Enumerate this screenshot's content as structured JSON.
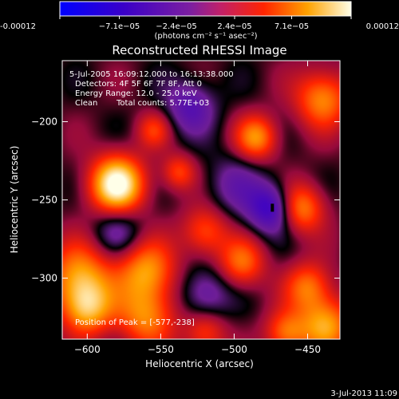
{
  "chart_data": {
    "type": "heatmap",
    "title": "Reconstructed RHESSI Image",
    "xlabel": "Heliocentric X (arcsec)",
    "ylabel": "Heliocentric Y (arcsec)",
    "xlim": [
      -617,
      -428
    ],
    "ylim": [
      -339,
      -161
    ],
    "xticks": [
      -600,
      -550,
      -500,
      -450
    ],
    "yticks": [
      -200,
      -250,
      -300
    ],
    "colorbar": {
      "ticks": [
        {
          "value": -0.00012,
          "label": "-0.00012"
        },
        {
          "value": -7.1e-05,
          "label": "−7.1e−05"
        },
        {
          "value": -2.4e-05,
          "label": "−2.4e−05"
        },
        {
          "value": 2.4e-05,
          "label": "2.4e−05"
        },
        {
          "value": 7.1e-05,
          "label": "7.1e−05"
        },
        {
          "value": 0.00012,
          "label": "0.00012"
        }
      ],
      "min": -0.00012,
      "max": 0.00012,
      "unit_label": "(photons cm⁻² s⁻¹ asec⁻²)"
    },
    "annotations": {
      "time_range": "5-Jul-2005 16:09:12.000 to 16:13:38.000",
      "detectors": "Detectors: 4F 5F 6F 7F 8F, Att 0",
      "energy_range": "Energy Range: 12.0 - 25.0 keV",
      "clean_label": "Clean",
      "total_counts": "Total counts: 5.77E+03",
      "peak_position": "Position of Peak = [-577,-238]"
    },
    "peak": {
      "x": -577,
      "y": -238
    },
    "sources": [
      {
        "x": -580,
        "y": -240,
        "sigma": 13,
        "amp": 1.0
      },
      {
        "x": -605,
        "y": -300,
        "sigma": 16,
        "amp": 0.65
      },
      {
        "x": -560,
        "y": -295,
        "sigma": 14,
        "amp": 0.6
      },
      {
        "x": -560,
        "y": -325,
        "sigma": 14,
        "amp": 0.55
      },
      {
        "x": -600,
        "y": -320,
        "sigma": 12,
        "amp": 0.55
      },
      {
        "x": -485,
        "y": -210,
        "sigma": 10,
        "amp": 0.6
      },
      {
        "x": -455,
        "y": -255,
        "sigma": 11,
        "amp": 0.6
      },
      {
        "x": -440,
        "y": -185,
        "sigma": 13,
        "amp": 0.6
      },
      {
        "x": -450,
        "y": -305,
        "sigma": 11,
        "amp": 0.5
      },
      {
        "x": -438,
        "y": -330,
        "sigma": 13,
        "amp": 0.65
      },
      {
        "x": -465,
        "y": -335,
        "sigma": 10,
        "amp": 0.5
      },
      {
        "x": -495,
        "y": -290,
        "sigma": 11,
        "amp": 0.5
      },
      {
        "x": -520,
        "y": -270,
        "sigma": 11,
        "amp": 0.45
      },
      {
        "x": -538,
        "y": -232,
        "sigma": 8,
        "amp": 0.4
      },
      {
        "x": -555,
        "y": -205,
        "sigma": 8,
        "amp": 0.35
      },
      {
        "x": -520,
        "y": -335,
        "sigma": 10,
        "amp": 0.4
      },
      {
        "x": -475,
        "y": -255,
        "sigma": 11,
        "amp": -0.6
      },
      {
        "x": -530,
        "y": -190,
        "sigma": 12,
        "amp": -0.4
      },
      {
        "x": -520,
        "y": -310,
        "sigma": 12,
        "amp": -0.35
      },
      {
        "x": -580,
        "y": -270,
        "sigma": 12,
        "amp": -0.3
      },
      {
        "x": -500,
        "y": -240,
        "sigma": 14,
        "amp": -0.25
      }
    ]
  },
  "footer": {
    "date": "3-Jul-2013 11:09"
  }
}
